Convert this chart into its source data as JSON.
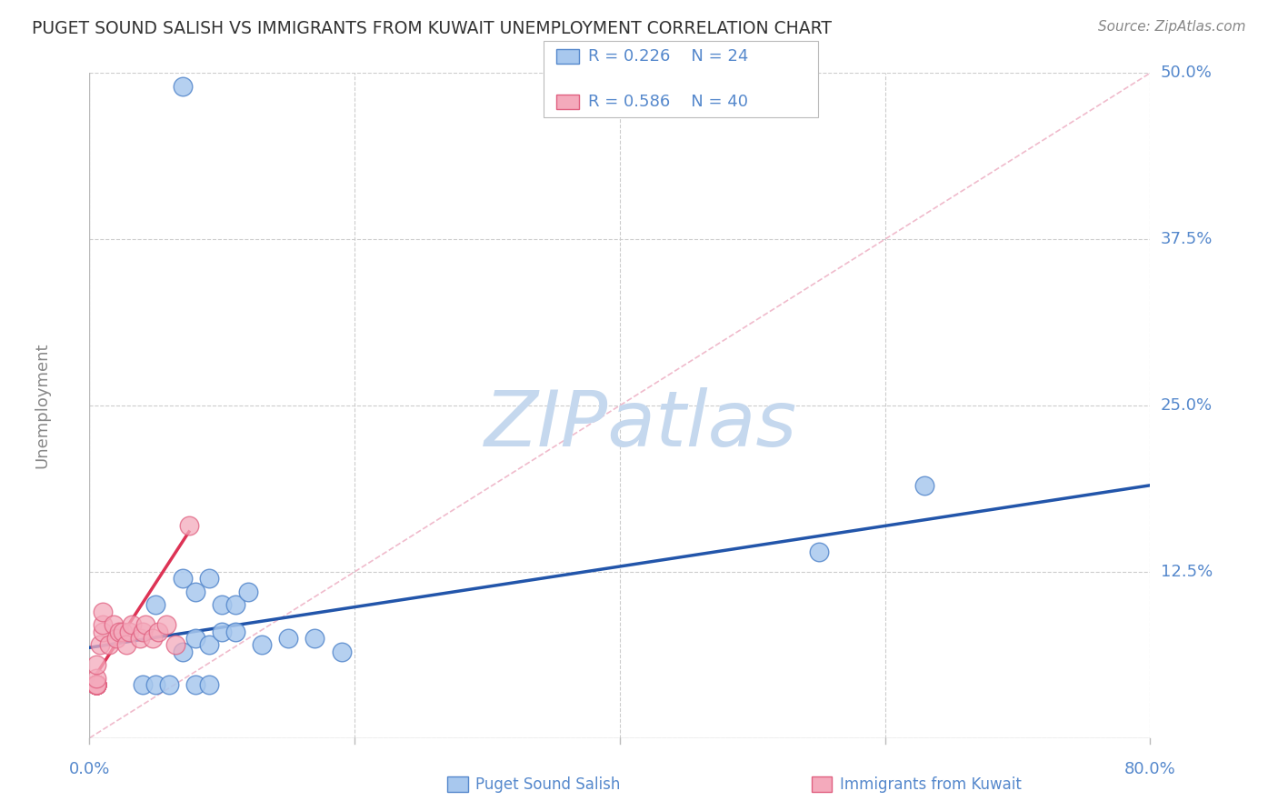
{
  "title": "PUGET SOUND SALISH VS IMMIGRANTS FROM KUWAIT UNEMPLOYMENT CORRELATION CHART",
  "source": "Source: ZipAtlas.com",
  "ylabel_label": "Unemployment",
  "xlim": [
    0.0,
    0.8
  ],
  "ylim": [
    0.0,
    0.5
  ],
  "x_tick_positions": [
    0.0,
    0.2,
    0.4,
    0.6,
    0.8
  ],
  "x_tick_labels_show": [
    "0.0%",
    "",
    "",
    "",
    "80.0%"
  ],
  "y_tick_positions": [
    0.0,
    0.125,
    0.25,
    0.375,
    0.5
  ],
  "y_tick_labels_show": [
    "",
    "12.5%",
    "25.0%",
    "37.5%",
    "50.0%"
  ],
  "legend_r1": "R = 0.226",
  "legend_n1": "N = 24",
  "legend_r2": "R = 0.586",
  "legend_n2": "N = 40",
  "color_blue_fill": "#A8C8EE",
  "color_blue_edge": "#5588CC",
  "color_pink_fill": "#F4AABC",
  "color_pink_edge": "#E06080",
  "color_blue_trendline": "#2255AA",
  "color_pink_trendline": "#DD3355",
  "color_pink_dashline": "#F0BBCC",
  "color_axis_text": "#5588CC",
  "color_grid": "#CCCCCC",
  "color_ylabel": "#888888",
  "watermark_text": "ZIPatlas",
  "watermark_color": "#C5D8EE",
  "background_color": "#FFFFFF",
  "blue_scatter_x": [
    0.07,
    0.05,
    0.07,
    0.08,
    0.09,
    0.1,
    0.11,
    0.12,
    0.07,
    0.08,
    0.09,
    0.1,
    0.11,
    0.13,
    0.15,
    0.17,
    0.19,
    0.55,
    0.63,
    0.04,
    0.05,
    0.06,
    0.08,
    0.09
  ],
  "blue_scatter_y": [
    0.49,
    0.1,
    0.12,
    0.11,
    0.12,
    0.1,
    0.1,
    0.11,
    0.065,
    0.075,
    0.07,
    0.08,
    0.08,
    0.07,
    0.075,
    0.075,
    0.065,
    0.14,
    0.19,
    0.04,
    0.04,
    0.04,
    0.04,
    0.04
  ],
  "pink_scatter_x": [
    0.005,
    0.005,
    0.005,
    0.005,
    0.005,
    0.005,
    0.005,
    0.005,
    0.005,
    0.005,
    0.005,
    0.005,
    0.005,
    0.005,
    0.005,
    0.005,
    0.005,
    0.005,
    0.005,
    0.005,
    0.008,
    0.01,
    0.01,
    0.01,
    0.015,
    0.018,
    0.02,
    0.022,
    0.025,
    0.028,
    0.03,
    0.032,
    0.038,
    0.04,
    0.042,
    0.048,
    0.052,
    0.058,
    0.065,
    0.075
  ],
  "pink_scatter_y": [
    0.04,
    0.04,
    0.04,
    0.04,
    0.04,
    0.04,
    0.04,
    0.04,
    0.04,
    0.04,
    0.04,
    0.04,
    0.04,
    0.04,
    0.04,
    0.04,
    0.04,
    0.04,
    0.045,
    0.055,
    0.07,
    0.08,
    0.085,
    0.095,
    0.07,
    0.085,
    0.075,
    0.08,
    0.08,
    0.07,
    0.08,
    0.085,
    0.075,
    0.08,
    0.085,
    0.075,
    0.08,
    0.085,
    0.07,
    0.16
  ],
  "blue_trendline_x": [
    0.0,
    0.8
  ],
  "blue_trendline_y": [
    0.068,
    0.19
  ],
  "pink_trendline_x": [
    0.0,
    0.075
  ],
  "pink_trendline_y": [
    0.04,
    0.155
  ],
  "pink_dashline_x": [
    0.0,
    0.8
  ],
  "pink_dashline_y": [
    0.0,
    0.5
  ]
}
